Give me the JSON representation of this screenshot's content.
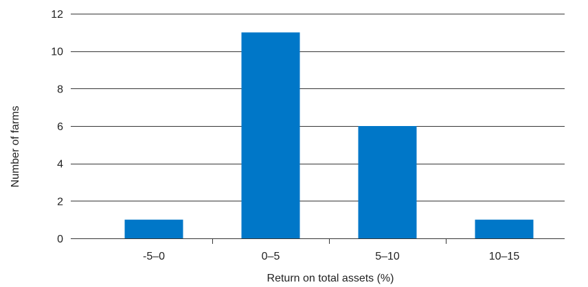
{
  "chart_data": {
    "type": "bar",
    "title": "",
    "xlabel": "Return on total assets (%)",
    "ylabel": "Number of farms",
    "categories": [
      "-5–0",
      "0–5",
      "5–10",
      "10–15"
    ],
    "values": [
      1,
      11,
      6,
      1
    ],
    "ylim": [
      0,
      12
    ],
    "yticks": [
      0,
      2,
      4,
      6,
      8,
      10,
      12
    ],
    "grid": true,
    "legend": "none",
    "bar_color": "#0077c8"
  }
}
